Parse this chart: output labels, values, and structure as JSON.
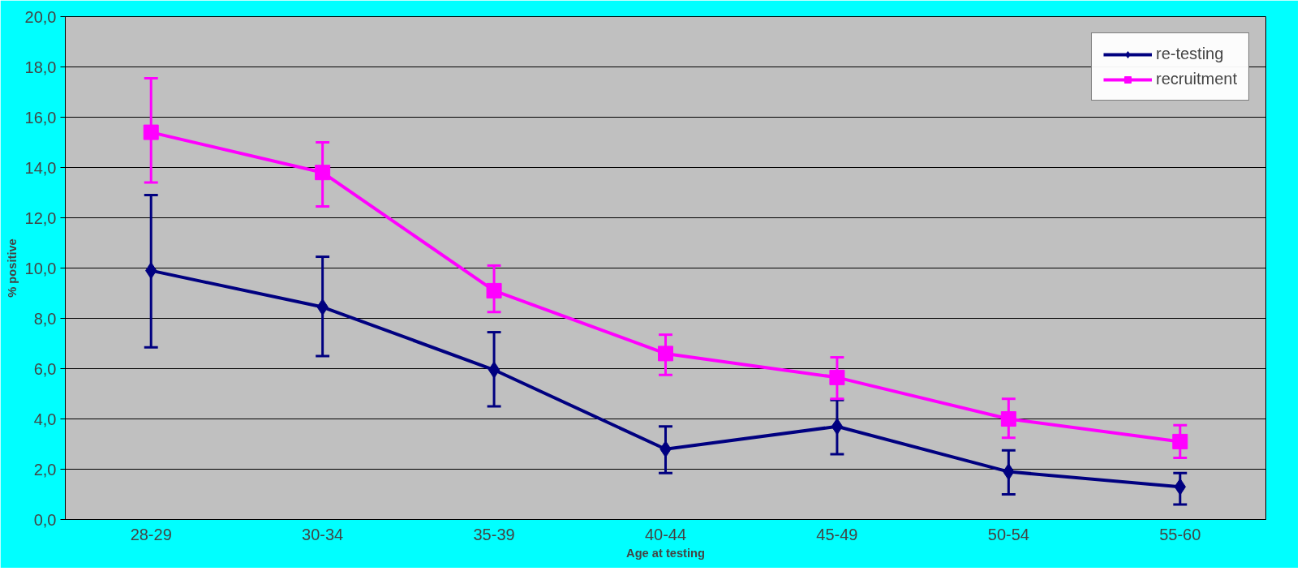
{
  "chart_data": {
    "type": "line",
    "xlabel": "Age at testing",
    "ylabel": "% positive",
    "categories": [
      "28-29",
      "30-34",
      "35-39",
      "40-44",
      "45-49",
      "50-54",
      "55-60"
    ],
    "series": [
      {
        "name": "re-testing",
        "color": "#000080",
        "marker": "diamond",
        "values": [
          9.9,
          8.45,
          5.95,
          2.8,
          3.7,
          1.9,
          1.3
        ],
        "errors": [
          [
            6.85,
            12.9
          ],
          [
            6.5,
            10.45
          ],
          [
            4.5,
            7.45
          ],
          [
            1.85,
            3.7
          ],
          [
            2.6,
            4.75
          ],
          [
            1.0,
            2.75
          ],
          [
            0.6,
            1.85
          ]
        ]
      },
      {
        "name": "recruitment",
        "color": "#ff00ff",
        "marker": "square",
        "values": [
          15.4,
          13.8,
          9.1,
          6.6,
          5.65,
          4.0,
          3.1
        ],
        "errors": [
          [
            13.4,
            17.55
          ],
          [
            12.45,
            15.0
          ],
          [
            8.25,
            10.1
          ],
          [
            5.75,
            7.35
          ],
          [
            4.8,
            6.45
          ],
          [
            3.25,
            4.8
          ],
          [
            2.45,
            3.75
          ]
        ]
      }
    ],
    "ylim": [
      0,
      20
    ],
    "yticks": [
      {
        "value": 0,
        "label": "0,0"
      },
      {
        "value": 2,
        "label": "2,0"
      },
      {
        "value": 4,
        "label": "4,0"
      },
      {
        "value": 6,
        "label": "6,0"
      },
      {
        "value": 8,
        "label": "8,0"
      },
      {
        "value": 10,
        "label": "10,0"
      },
      {
        "value": 12,
        "label": "12,0"
      },
      {
        "value": 14,
        "label": "14,0"
      },
      {
        "value": 16,
        "label": "16,0"
      },
      {
        "value": 18,
        "label": "18,0"
      },
      {
        "value": 20,
        "label": "20,0"
      }
    ],
    "grid": "y",
    "legend": "top right",
    "line_style": "solid"
  }
}
